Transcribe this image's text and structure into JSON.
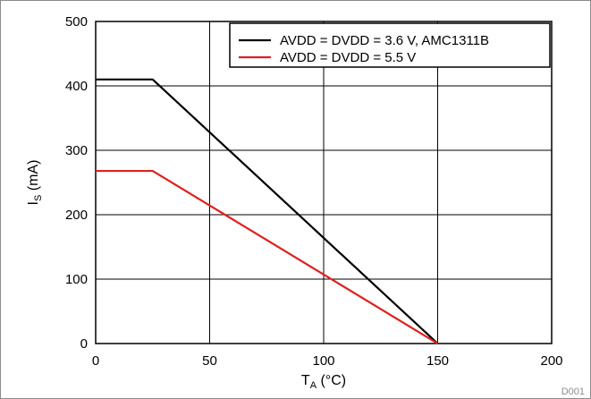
{
  "chart_data": {
    "type": "line",
    "x_axis": {
      "label_main": "T",
      "label_sub": "A",
      "label_unit": " (°C)",
      "range": [
        0,
        200
      ],
      "ticks": [
        0,
        50,
        100,
        150,
        200
      ],
      "tick_labels": [
        "0",
        "50",
        "100",
        "150",
        "200"
      ]
    },
    "y_axis": {
      "label_main": "I",
      "label_sub": "S",
      "label_unit": " (mA)",
      "range": [
        0,
        500
      ],
      "ticks": [
        0,
        100,
        200,
        300,
        400,
        500
      ],
      "tick_labels": [
        "0",
        "100",
        "200",
        "300",
        "400",
        "500"
      ]
    },
    "grid": true,
    "legend_position": "top-right",
    "series": [
      {
        "name": "AVDD = DVDD = 3.6 V, AMC1311B",
        "color": "#000000",
        "points": [
          [
            0,
            410
          ],
          [
            25,
            410
          ],
          [
            150,
            0
          ]
        ]
      },
      {
        "name": "AVDD = DVDD = 5.5 V",
        "color": "#e02020",
        "points": [
          [
            0,
            268
          ],
          [
            25,
            268
          ],
          [
            150,
            0
          ]
        ]
      }
    ],
    "graph_id": "D001"
  }
}
